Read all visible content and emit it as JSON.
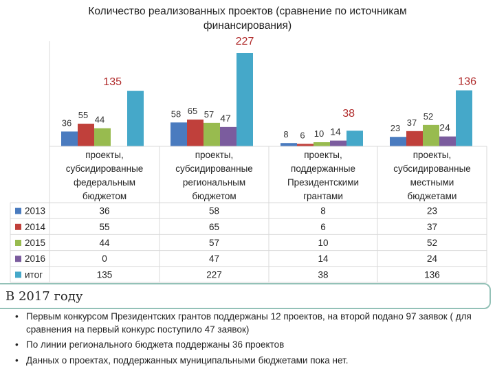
{
  "chart_data": {
    "type": "bar",
    "title": "Количество реализованных проектов (сравнение по источникам финансирования)",
    "categories": [
      "проекты, субсидированные федеральным бюджетом",
      "проекты, субсидированные региональным бюджетом",
      "проекты, поддержанные Президентскими грантами",
      "проекты, субсидированные местными бюджетами"
    ],
    "series": [
      {
        "name": "2013",
        "values": [
          36,
          58,
          8,
          23
        ],
        "color": "#4a7bbf"
      },
      {
        "name": "2014",
        "values": [
          55,
          65,
          6,
          37
        ],
        "color": "#c0403b"
      },
      {
        "name": "2015",
        "values": [
          44,
          57,
          10,
          52
        ],
        "color": "#98bb4f"
      },
      {
        "name": "2016",
        "values": [
          0,
          47,
          14,
          24
        ],
        "color": "#7b5c9e"
      },
      {
        "name": "итог",
        "values": [
          135,
          227,
          38,
          136
        ],
        "color": "#45a8c9"
      }
    ],
    "ylim": [
      0,
      227
    ],
    "grid": false,
    "legend": "left, within data table",
    "data_table": true
  },
  "text_box": {
    "title": "В 2017 году",
    "bullets": [
      "Первым конкурсом Президентских грантов поддержаны 12 проектов, на второй подано 97 заявок ( для сравнения на первый конкурс поступило 47 заявок)",
      "По линии регионального бюджета поддержаны 36 проектов",
      "Данных о проектах, поддержанных муниципальными бюджетами пока нет."
    ]
  }
}
